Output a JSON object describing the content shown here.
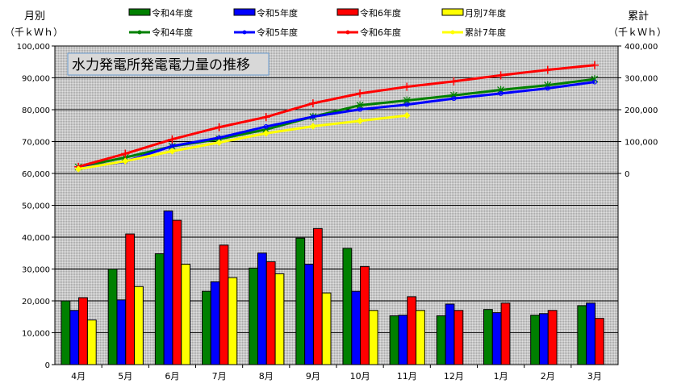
{
  "chart_data": {
    "type": "bar+line",
    "title": "水力発電所発電電力量の推移",
    "ylabel_left": [
      "月別",
      "（千ｋＷｈ）"
    ],
    "ylabel_right": [
      "累計",
      "（千ｋＷｈ）"
    ],
    "categories": [
      "4月",
      "5月",
      "6月",
      "7月",
      "8月",
      "9月",
      "10月",
      "11月",
      "12月",
      "1月",
      "2月",
      "3月"
    ],
    "ylim_left": [
      0,
      100000
    ],
    "yticks_left": [
      "0",
      "10,000",
      "20,000",
      "30,000",
      "40,000",
      "50,000",
      "60,000",
      "70,000",
      "80,000",
      "90,000",
      "100,000"
    ],
    "ylim_right": [
      -600000,
      400000
    ],
    "yticks_right": [
      "0",
      "100,000",
      "200,000",
      "300,000",
      "400,000"
    ],
    "grid": true,
    "legend": "top",
    "bar_series": [
      {
        "name": "令和4年度",
        "color": "#008000",
        "values": [
          20000,
          30000,
          34800,
          23000,
          30300,
          39700,
          36500,
          15300,
          15300,
          17300,
          15500,
          18500
        ]
      },
      {
        "name": "令和5年度",
        "color": "#0000ff",
        "values": [
          17000,
          20300,
          48200,
          26000,
          35000,
          31500,
          23000,
          15500,
          19000,
          16300,
          16000,
          19300
        ]
      },
      {
        "name": "令和6年度",
        "color": "#ff0000",
        "values": [
          21000,
          41000,
          45300,
          37500,
          32300,
          42700,
          30800,
          21300,
          17000,
          19300,
          17000,
          14500
        ]
      },
      {
        "name": "月別7年度",
        "color": "#ffff00",
        "values": [
          14000,
          24500,
          31500,
          27300,
          28500,
          22500,
          17000,
          17000
        ]
      }
    ],
    "line_series": [
      {
        "name": "令和4年度",
        "color": "#008000",
        "marker": "asterisk",
        "values": [
          20000,
          50000,
          85000,
          108000,
          138000,
          178000,
          214000,
          229000,
          245000,
          262000,
          277000,
          296000
        ]
      },
      {
        "name": "令和5年度",
        "color": "#0000ff",
        "marker": "circle",
        "values": [
          17000,
          37000,
          86000,
          112000,
          147000,
          178000,
          201000,
          216000,
          235000,
          251000,
          267000,
          287000
        ]
      },
      {
        "name": "令和6年度",
        "color": "#ff0000",
        "marker": "plus",
        "values": [
          21000,
          62000,
          107000,
          145000,
          177000,
          220000,
          251000,
          272000,
          289000,
          308000,
          325000,
          340000
        ]
      },
      {
        "name": "累計7年度",
        "color": "#ffff00",
        "marker": "diamond",
        "values": [
          14000,
          38500,
          70000,
          97000,
          126000,
          148000,
          165000,
          182000
        ]
      }
    ]
  }
}
